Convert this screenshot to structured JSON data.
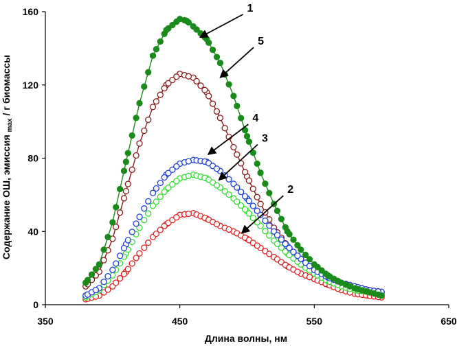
{
  "chart_data": {
    "type": "scatter",
    "title": "",
    "xlabel": "Длина волны, нм",
    "ylabel_main": "Содержание ОШ, эмиссия ",
    "ylabel_sub": "max",
    "ylabel_tail": " / г биомассы",
    "xlim": [
      350,
      650
    ],
    "ylim": [
      0,
      160
    ],
    "xticks": [
      350,
      450,
      550,
      650
    ],
    "xtick_labels": [
      "350",
      "450",
      "550",
      "650"
    ],
    "yticks": [
      0,
      40,
      80,
      120,
      160
    ],
    "ytick_labels": [
      "0",
      "40",
      "80",
      "120",
      "160"
    ],
    "grid": false,
    "legend": "none",
    "series": [
      {
        "name": "1",
        "color": "#1a8a1a",
        "marker": "filled-circle",
        "connected": true,
        "x": [
          380,
          390,
          400,
          410,
          420,
          430,
          440,
          450,
          455,
          460,
          470,
          480,
          490,
          500,
          510,
          520,
          530,
          540,
          550,
          560,
          570,
          580,
          590,
          600
        ],
        "y": [
          12,
          22,
          45,
          78,
          110,
          136,
          150,
          156,
          155,
          152,
          145,
          132,
          114,
          92,
          72,
          55,
          40,
          30,
          22,
          16,
          12,
          9,
          7,
          5
        ]
      },
      {
        "name": "2",
        "color": "#e02020",
        "marker": "open-circle",
        "connected": false,
        "x": [
          380,
          390,
          400,
          410,
          420,
          430,
          440,
          450,
          460,
          470,
          480,
          490,
          500,
          510,
          520,
          530,
          540,
          550,
          560,
          570,
          580,
          590,
          600
        ],
        "y": [
          3,
          5,
          10,
          18,
          28,
          37,
          44,
          49,
          50,
          47,
          43,
          40,
          36,
          31,
          26,
          21,
          17,
          14,
          11,
          8,
          6,
          5,
          4
        ]
      },
      {
        "name": "3",
        "color": "#33dd33",
        "marker": "open-circle",
        "connected": false,
        "x": [
          380,
          390,
          400,
          410,
          420,
          430,
          440,
          450,
          460,
          470,
          480,
          490,
          500,
          510,
          520,
          530,
          540,
          550,
          560,
          570,
          580,
          590,
          600
        ],
        "y": [
          4,
          8,
          16,
          28,
          42,
          54,
          63,
          69,
          71,
          69,
          64,
          58,
          51,
          43,
          35,
          28,
          22,
          17,
          13,
          10,
          8,
          7,
          6
        ]
      },
      {
        "name": "4",
        "color": "#1f3fd6",
        "marker": "open-circle",
        "connected": false,
        "x": [
          380,
          390,
          400,
          410,
          420,
          430,
          440,
          450,
          460,
          470,
          480,
          490,
          500,
          510,
          520,
          530,
          540,
          550,
          560,
          570,
          580,
          590,
          600
        ],
        "y": [
          5,
          9,
          19,
          33,
          48,
          61,
          71,
          77,
          79,
          78,
          73,
          66,
          58,
          49,
          40,
          32,
          25,
          19,
          15,
          12,
          10,
          8,
          7
        ]
      },
      {
        "name": "5",
        "color": "#8a1a1a",
        "marker": "open-circle",
        "connected": true,
        "x": [
          380,
          390,
          400,
          410,
          420,
          430,
          440,
          450,
          460,
          470,
          480,
          490,
          500,
          510,
          520,
          530,
          540,
          550,
          560,
          570,
          580,
          590,
          600
        ],
        "y": [
          10,
          18,
          36,
          62,
          88,
          108,
          120,
          126,
          124,
          116,
          102,
          86,
          70,
          55,
          42,
          32,
          25,
          19,
          15,
          12,
          10,
          8,
          7
        ]
      }
    ],
    "annotations": [
      {
        "label": "1",
        "series": "1",
        "tip_x": 465,
        "tip_y": 146,
        "text_x": 500,
        "text_y": 160
      },
      {
        "label": "5",
        "series": "5",
        "tip_x": 480,
        "tip_y": 124,
        "text_x": 508,
        "text_y": 142
      },
      {
        "label": "4",
        "series": "4",
        "tip_x": 471,
        "tip_y": 82,
        "text_x": 504,
        "text_y": 100
      },
      {
        "label": "3",
        "series": "3",
        "tip_x": 479,
        "tip_y": 68,
        "text_x": 511,
        "text_y": 89
      },
      {
        "label": "2",
        "series": "2",
        "tip_x": 496,
        "tip_y": 39,
        "text_x": 530,
        "text_y": 61
      }
    ]
  }
}
